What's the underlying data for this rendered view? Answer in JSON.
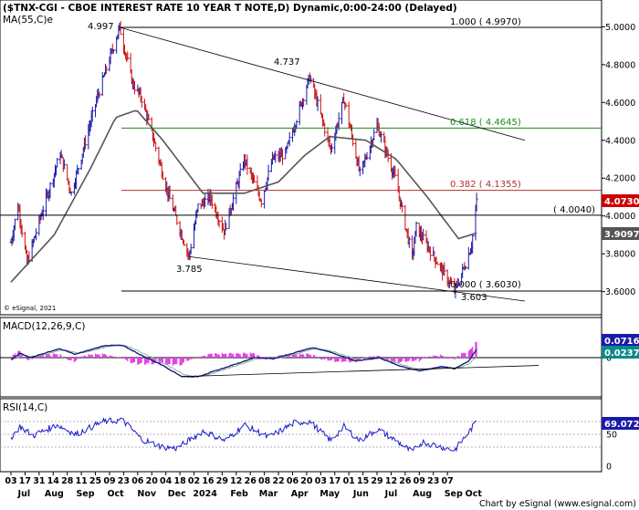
{
  "panes": {
    "price": {
      "title": "($TNX-CGI - CBOE INTEREST RATE 10 YEAR T NOTE,D) Dynamic,0:00-24:00 (Delayed)",
      "indicator_label": "MA(55,C)e",
      "copyright": "© eSignal, 2021",
      "axis_ticks": [
        "5.0000",
        "4.8000",
        "4.6000",
        "4.4000",
        "4.2000",
        "4.0000",
        "3.8000",
        "3.6000"
      ],
      "annotations": [
        "4.997",
        "4.737",
        "3.785",
        "3.603"
      ],
      "fib_levels": [
        {
          "label": "1.000 ( 4.9970)",
          "value": 4.997
        },
        {
          "label": "0.618 ( 4.4645)",
          "value": 4.4645
        },
        {
          "label": "0.382 ( 4.1355)",
          "value": 4.1355
        },
        {
          "label": "( 4.0040)",
          "value": 4.004
        },
        {
          "label": "0.000 ( 3.6030)",
          "value": 3.603
        }
      ],
      "last_price": "4.0730",
      "ma_value": "3.9097",
      "colors": {
        "up": "#1a1aaa",
        "down": "#cc1111",
        "ma": "#555555",
        "fib100": "#000000",
        "fib618": "#1a8a1a",
        "fib382": "#b03030",
        "box_last": "#cc0000",
        "box_ma": "#555555"
      }
    },
    "macd": {
      "label": "MACD(12,26,9,C)",
      "axis_ticks": [
        "0"
      ],
      "values": {
        "macd": "0.0716",
        "signal": "0.0237"
      },
      "colors": {
        "macd_line": "#1a1a88",
        "signal_line": "#88bb88",
        "hist": "#e040e0",
        "box_macd": "#1a1aaa",
        "box_signal": "#0a8a8a"
      }
    },
    "rsi": {
      "label": "RSI(14,C)",
      "axis_ticks": [
        "50",
        "0"
      ],
      "value": "69.0725",
      "colors": {
        "line": "#1a1acc",
        "box": "#1a1aaa"
      }
    }
  },
  "footer": "Chart by eSignal (www.esignal.com)",
  "chart_data": {
    "type": "line",
    "title": "($TNX-CGI - CBOE INTEREST RATE 10 YEAR T NOTE,D) Dynamic,0:00-24:00 (Delayed)",
    "xlabel": "",
    "ylabel": "",
    "ylim": [
      3.55,
      5.05
    ],
    "x_day_labels": [
      "03",
      "17",
      "31",
      "14",
      "28",
      "11",
      "25",
      "09",
      "23",
      "06",
      "20",
      "04",
      "18",
      "02",
      "16",
      "29",
      "12",
      "26",
      "08",
      "22",
      "06",
      "20",
      "03",
      "17",
      "01",
      "15",
      "29",
      "12",
      "26",
      "09",
      "23",
      "07"
    ],
    "x_month_labels": [
      "Jul",
      "Aug",
      "Sep",
      "Oct",
      "Nov",
      "Dec",
      "2024",
      "Feb",
      "Mar",
      "Apr",
      "May",
      "Jun",
      "Jul",
      "Aug",
      "Sep",
      "Oct"
    ],
    "price_anchors": [
      {
        "date": "2023-07-03",
        "value": 3.86
      },
      {
        "date": "2023-07-10",
        "value": 4.06
      },
      {
        "date": "2023-07-19",
        "value": 3.75
      },
      {
        "date": "2023-07-31",
        "value": 3.97
      },
      {
        "date": "2023-08-21",
        "value": 4.33
      },
      {
        "date": "2023-09-01",
        "value": 4.12
      },
      {
        "date": "2023-09-27",
        "value": 4.63
      },
      {
        "date": "2023-10-19",
        "value": 4.997
      },
      {
        "date": "2023-11-01",
        "value": 4.7
      },
      {
        "date": "2023-11-10",
        "value": 4.62
      },
      {
        "date": "2023-11-21",
        "value": 4.42
      },
      {
        "date": "2023-12-06",
        "value": 4.12
      },
      {
        "date": "2023-12-27",
        "value": 3.785
      },
      {
        "date": "2024-01-05",
        "value": 4.05
      },
      {
        "date": "2024-01-17",
        "value": 4.1
      },
      {
        "date": "2024-01-31",
        "value": 3.92
      },
      {
        "date": "2024-02-20",
        "value": 4.3
      },
      {
        "date": "2024-03-08",
        "value": 4.08
      },
      {
        "date": "2024-03-19",
        "value": 4.3
      },
      {
        "date": "2024-04-01",
        "value": 4.33
      },
      {
        "date": "2024-04-25",
        "value": 4.737
      },
      {
        "date": "2024-05-16",
        "value": 4.35
      },
      {
        "date": "2024-05-29",
        "value": 4.62
      },
      {
        "date": "2024-06-14",
        "value": 4.22
      },
      {
        "date": "2024-07-01",
        "value": 4.48
      },
      {
        "date": "2024-07-19",
        "value": 4.2
      },
      {
        "date": "2024-08-05",
        "value": 3.78
      },
      {
        "date": "2024-08-09",
        "value": 3.94
      },
      {
        "date": "2024-09-16",
        "value": 3.603
      },
      {
        "date": "2024-09-27",
        "value": 3.75
      },
      {
        "date": "2024-10-03",
        "value": 3.85
      },
      {
        "date": "2024-10-08",
        "value": 4.073
      }
    ],
    "ma_anchors": [
      {
        "date": "2023-07-03",
        "value": 3.65
      },
      {
        "date": "2023-08-15",
        "value": 3.9
      },
      {
        "date": "2023-09-20",
        "value": 4.25
      },
      {
        "date": "2023-10-15",
        "value": 4.52
      },
      {
        "date": "2023-11-05",
        "value": 4.56
      },
      {
        "date": "2023-12-01",
        "value": 4.4
      },
      {
        "date": "2024-01-10",
        "value": 4.12
      },
      {
        "date": "2024-02-20",
        "value": 4.12
      },
      {
        "date": "2024-03-25",
        "value": 4.18
      },
      {
        "date": "2024-04-20",
        "value": 4.32
      },
      {
        "date": "2024-05-15",
        "value": 4.42
      },
      {
        "date": "2024-06-20",
        "value": 4.4
      },
      {
        "date": "2024-07-20",
        "value": 4.3
      },
      {
        "date": "2024-08-20",
        "value": 4.1
      },
      {
        "date": "2024-09-20",
        "value": 3.88
      },
      {
        "date": "2024-10-08",
        "value": 3.91
      }
    ],
    "trendlines": [
      {
        "from": {
          "date": "2023-10-19",
          "value": 4.997
        },
        "to": {
          "date": "2024-11-25",
          "value": 4.4
        }
      },
      {
        "from": {
          "date": "2023-12-27",
          "value": 3.785
        },
        "to": {
          "date": "2024-11-25",
          "value": 3.55
        }
      }
    ],
    "macd_anchors": [
      {
        "date": "2023-07-03",
        "value": -0.02
      },
      {
        "date": "2023-07-12",
        "value": 0.04
      },
      {
        "date": "2023-07-22",
        "value": 0.0
      },
      {
        "date": "2023-08-20",
        "value": 0.08
      },
      {
        "date": "2023-09-05",
        "value": 0.03
      },
      {
        "date": "2023-10-05",
        "value": 0.11
      },
      {
        "date": "2023-10-22",
        "value": 0.11
      },
      {
        "date": "2023-11-10",
        "value": 0.02
      },
      {
        "date": "2023-12-01",
        "value": -0.07
      },
      {
        "date": "2023-12-20",
        "value": -0.17
      },
      {
        "date": "2024-01-05",
        "value": -0.17
      },
      {
        "date": "2024-02-01",
        "value": -0.09
      },
      {
        "date": "2024-03-01",
        "value": 0.0
      },
      {
        "date": "2024-03-20",
        "value": -0.01
      },
      {
        "date": "2024-04-28",
        "value": 0.09
      },
      {
        "date": "2024-05-12",
        "value": 0.06
      },
      {
        "date": "2024-06-10",
        "value": -0.03
      },
      {
        "date": "2024-07-03",
        "value": 0.0
      },
      {
        "date": "2024-07-22",
        "value": -0.07
      },
      {
        "date": "2024-08-12",
        "value": -0.12
      },
      {
        "date": "2024-09-03",
        "value": -0.08
      },
      {
        "date": "2024-09-16",
        "value": -0.1
      },
      {
        "date": "2024-09-30",
        "value": -0.03
      },
      {
        "date": "2024-10-08",
        "value": 0.0716
      }
    ],
    "rsi_anchors": [
      {
        "date": "2023-07-03",
        "value": 45
      },
      {
        "date": "2023-07-12",
        "value": 62
      },
      {
        "date": "2023-07-25",
        "value": 48
      },
      {
        "date": "2023-08-18",
        "value": 65
      },
      {
        "date": "2023-09-05",
        "value": 50
      },
      {
        "date": "2023-10-03",
        "value": 70
      },
      {
        "date": "2023-10-22",
        "value": 72
      },
      {
        "date": "2023-11-10",
        "value": 42
      },
      {
        "date": "2023-12-01",
        "value": 30
      },
      {
        "date": "2023-12-15",
        "value": 28
      },
      {
        "date": "2024-01-10",
        "value": 55
      },
      {
        "date": "2024-02-01",
        "value": 40
      },
      {
        "date": "2024-02-20",
        "value": 65
      },
      {
        "date": "2024-03-15",
        "value": 45
      },
      {
        "date": "2024-04-10",
        "value": 68
      },
      {
        "date": "2024-04-25",
        "value": 70
      },
      {
        "date": "2024-05-16",
        "value": 40
      },
      {
        "date": "2024-05-29",
        "value": 62
      },
      {
        "date": "2024-06-14",
        "value": 40
      },
      {
        "date": "2024-07-01",
        "value": 58
      },
      {
        "date": "2024-07-20",
        "value": 40
      },
      {
        "date": "2024-08-05",
        "value": 22
      },
      {
        "date": "2024-08-15",
        "value": 38
      },
      {
        "date": "2024-09-16",
        "value": 25
      },
      {
        "date": "2024-10-08",
        "value": 69.0725
      }
    ],
    "rsi_overbought": 70,
    "rsi_oversold": 30
  }
}
